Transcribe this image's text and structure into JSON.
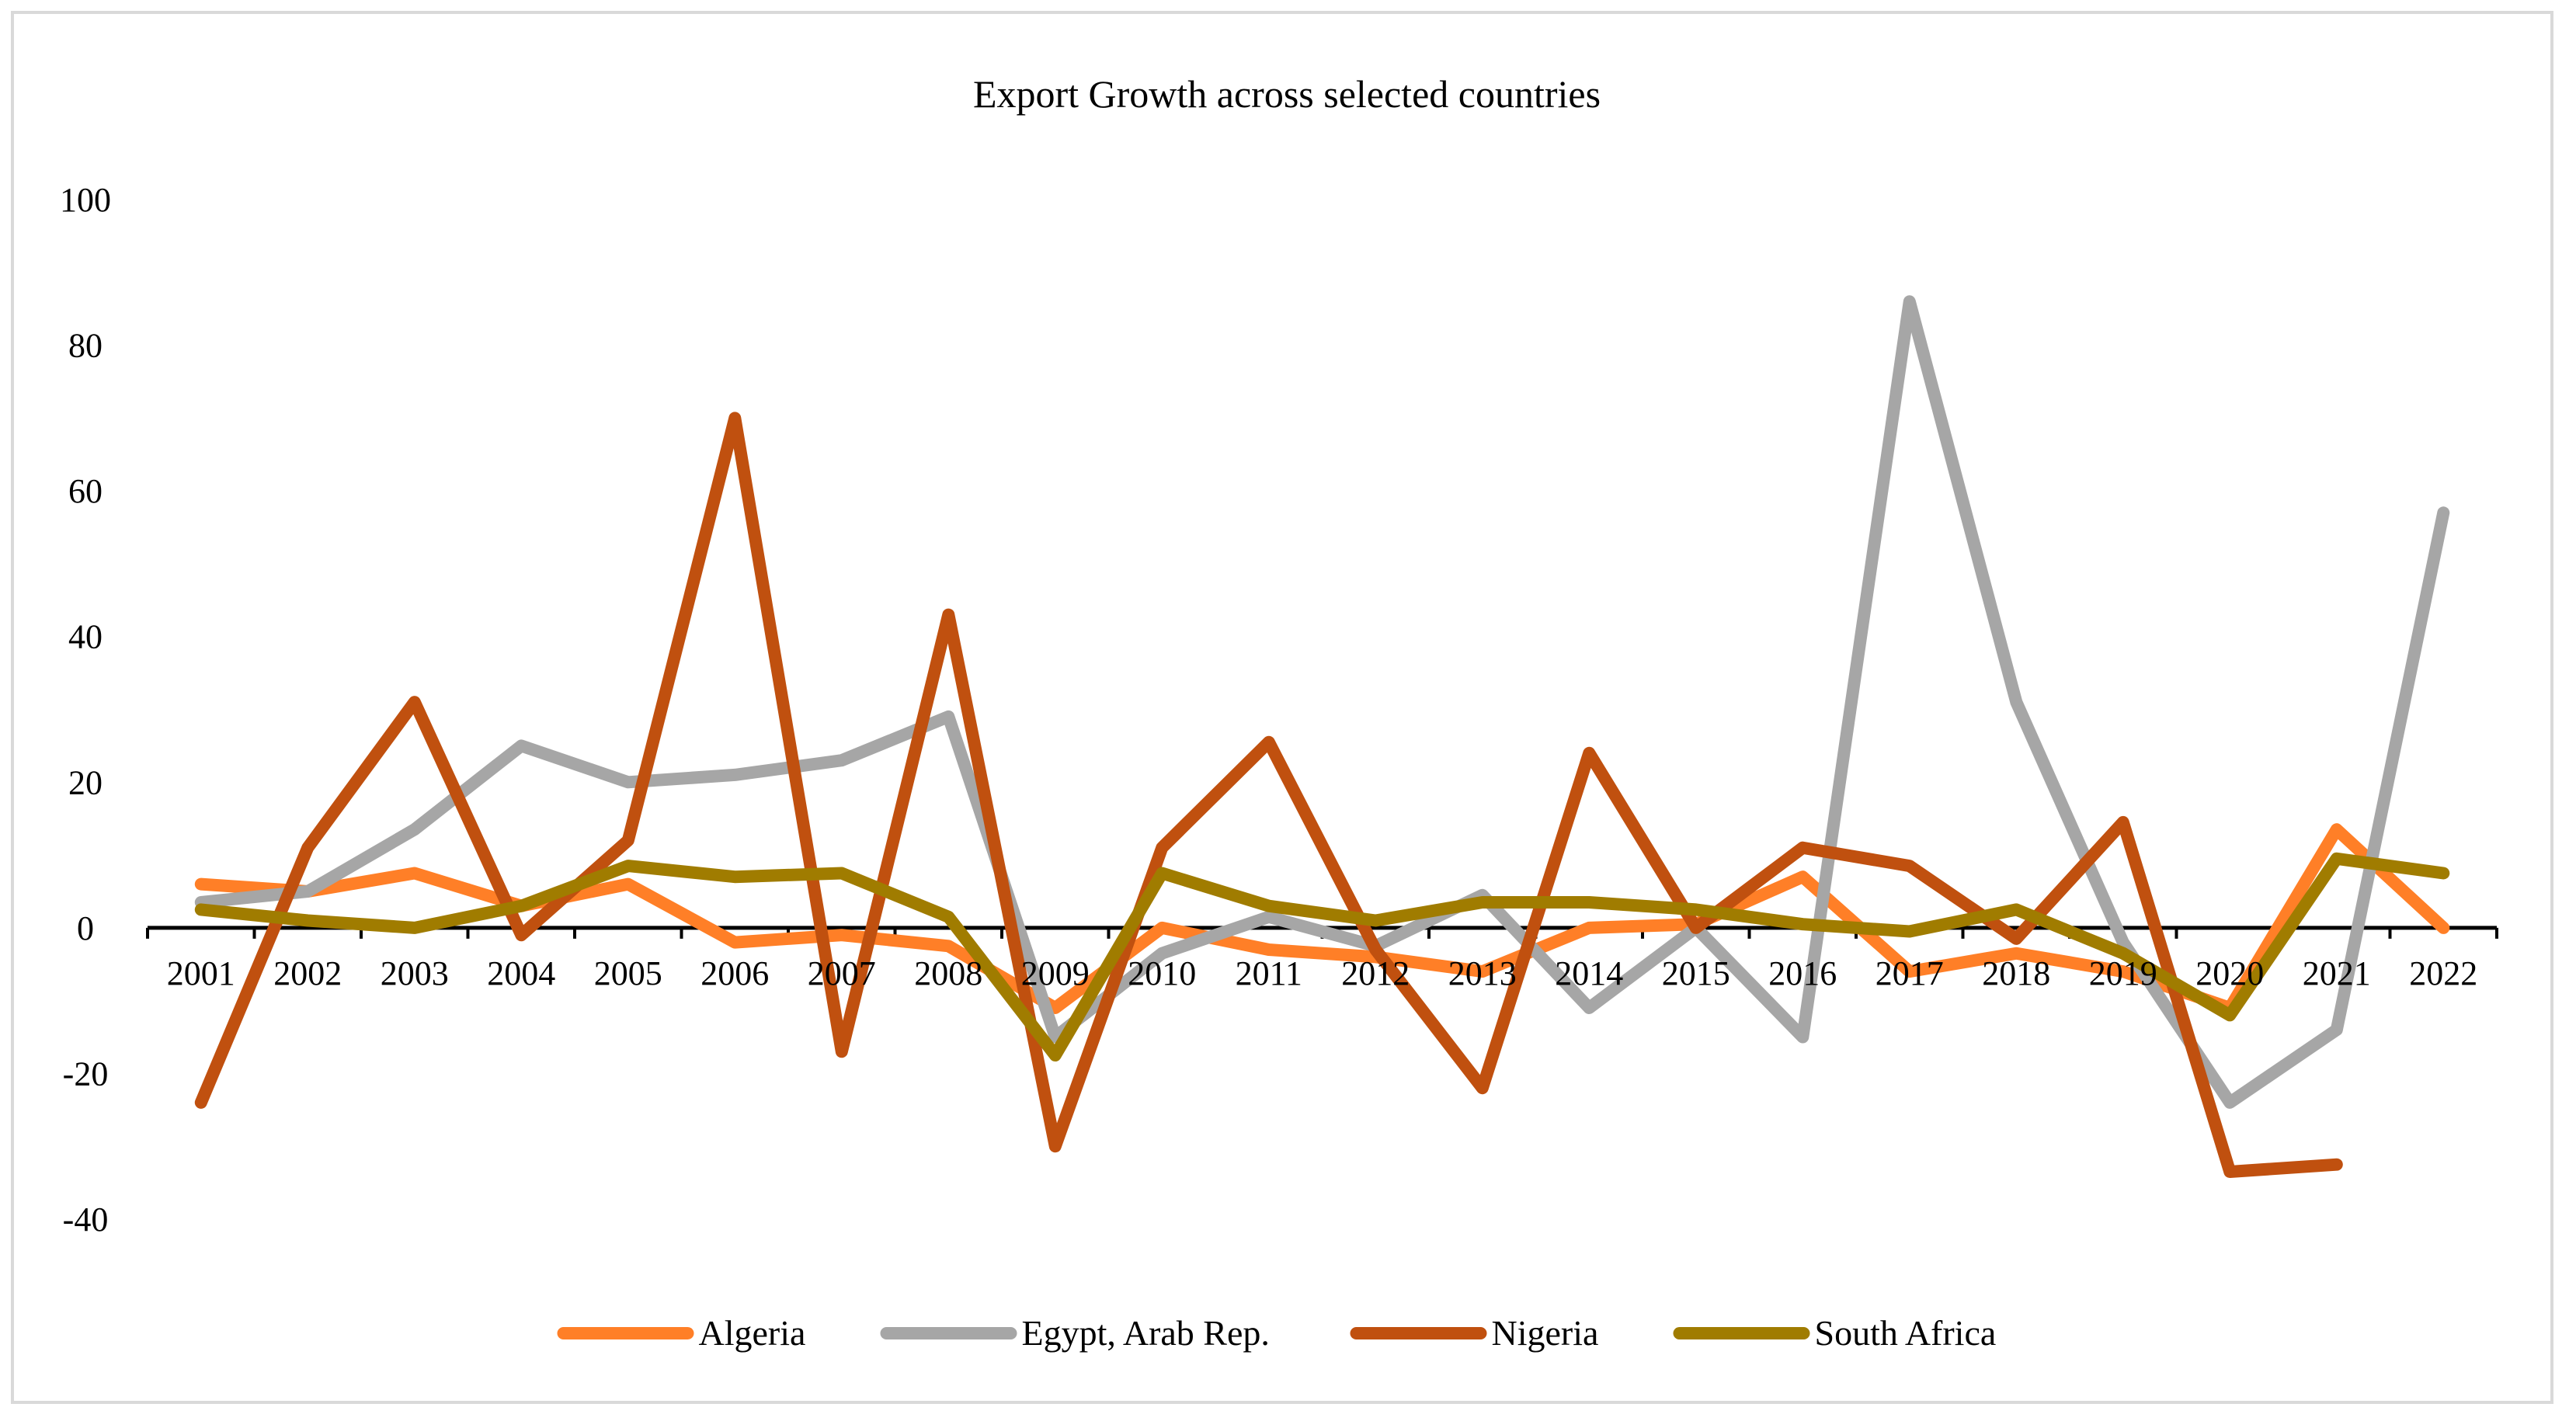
{
  "chart_data": {
    "type": "line",
    "title": "Export Growth across selected countries",
    "xlabel": "",
    "ylabel": "",
    "ylim": [
      -40,
      100
    ],
    "ytick_step": 20,
    "x": [
      "2001",
      "2002",
      "2003",
      "2004",
      "2005",
      "2006",
      "2007",
      "2008",
      "2009",
      "2010",
      "2011",
      "2012",
      "2013",
      "2014",
      "2015",
      "2016",
      "2017",
      "2018",
      "2019",
      "2020",
      "2021",
      "2022"
    ],
    "legend_position": "bottom",
    "grid": false,
    "series": [
      {
        "name": "Algeria",
        "color": "#ff7f27",
        "values": [
          6,
          5,
          7.5,
          3,
          6,
          -2,
          -1,
          -2.5,
          -11,
          0,
          -3,
          -4,
          -6,
          0,
          0.5,
          7,
          -6,
          -3.5,
          -6,
          -11,
          13.5,
          0
        ]
      },
      {
        "name": "Egypt, Arab Rep.",
        "color": "#a6a6a6",
        "values": [
          3.5,
          5,
          13.5,
          25,
          20,
          21,
          23,
          29,
          -15,
          -3.5,
          1.5,
          -2.5,
          4.5,
          -11,
          0,
          -15,
          86,
          31,
          -2,
          -24,
          -14,
          57
        ]
      },
      {
        "name": "Nigeria",
        "color": "#c0500f",
        "values": [
          -24,
          11,
          31,
          -1,
          12,
          70,
          -17,
          43,
          -30,
          11,
          25.5,
          -3,
          -22,
          24,
          0,
          11,
          8.5,
          -1.5,
          14.5,
          -33.5,
          -32.5,
          null
        ]
      },
      {
        "name": "South Africa",
        "color": "#a07c00",
        "values": [
          2.5,
          1,
          0,
          3,
          8.5,
          7,
          7.5,
          1.5,
          -17.5,
          7.5,
          3,
          1,
          3.5,
          3.5,
          2.5,
          0.5,
          -0.5,
          2.5,
          -3.5,
          -12,
          9.5,
          7.5
        ]
      }
    ]
  }
}
